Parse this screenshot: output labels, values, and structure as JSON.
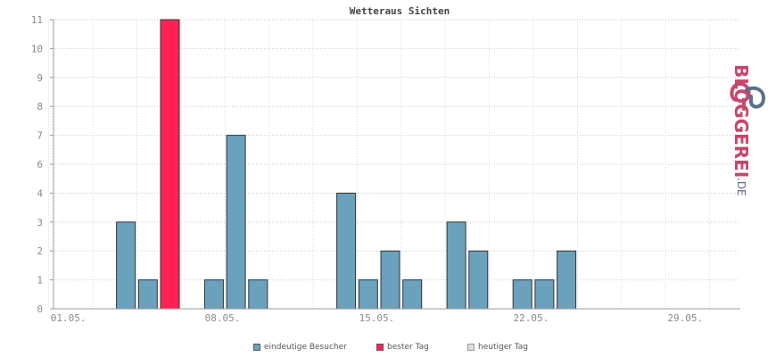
{
  "chart_data": {
    "type": "bar",
    "title": "Wetteraus Sichten",
    "ylim": [
      0,
      11
    ],
    "y_ticks": [
      "0",
      "1",
      "2",
      "3",
      "4",
      "6",
      "7",
      "8",
      "9",
      "10",
      "11"
    ],
    "x_ticks": [
      "01.05.",
      "08.05.",
      "15.05.",
      "22.05.",
      "29.05."
    ],
    "x_tick_days": [
      1,
      8,
      15,
      22,
      29
    ],
    "days": [
      1,
      2,
      3,
      4,
      5,
      6,
      7,
      8,
      9,
      10,
      11,
      12,
      13,
      14,
      15,
      16,
      17,
      18,
      19,
      20,
      21,
      22,
      23,
      24,
      25,
      26,
      27,
      28,
      29,
      30,
      31
    ],
    "series": [
      {
        "name": "eindeutige Besucher",
        "color": "#6aa1bd",
        "values": [
          0,
          0,
          0,
          3,
          1,
          11,
          0,
          1,
          7,
          1,
          0,
          0,
          0,
          4,
          1,
          2,
          1,
          0,
          3,
          2,
          0,
          1,
          1,
          2,
          0,
          0,
          0,
          0,
          0,
          0,
          0
        ]
      }
    ],
    "best_day": 6,
    "best_color": "#ff2255",
    "grid": true
  },
  "legend": {
    "items": [
      {
        "label": "eindeutige Besucher",
        "color": "#6aa1bd"
      },
      {
        "label": "bester Tag",
        "color": "#ff2255"
      },
      {
        "label": "heutiger Tag",
        "color": "#dddddd"
      }
    ]
  },
  "brand": {
    "main": "BLOGGEREI",
    "suffix": ".DE",
    "color_main": "#c8466a",
    "color_alt": "#5a6f8a"
  }
}
